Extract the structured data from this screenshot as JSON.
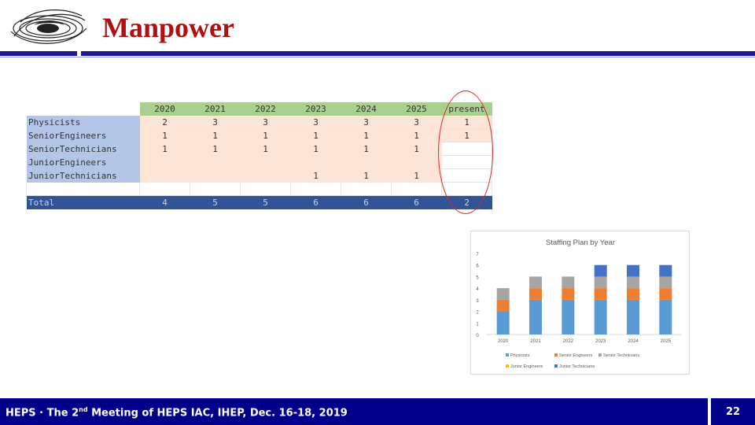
{
  "slide": {
    "title": "Manpower",
    "page_number": "22"
  },
  "footer": {
    "text_before": "HEPS · The 2",
    "text_sup": "nd",
    "text_after": " Meeting of HEPS IAC, IHEP, Dec. 16-18, 2019"
  },
  "table": {
    "header": [
      "2020",
      "2021",
      "2022",
      "2023",
      "2024",
      "2025",
      "present"
    ],
    "rows": [
      {
        "label": "Physicists",
        "values": [
          "2",
          "3",
          "3",
          "3",
          "3",
          "3",
          "1"
        ]
      },
      {
        "label": "SeniorEngineers",
        "values": [
          "1",
          "1",
          "1",
          "1",
          "1",
          "1",
          "1"
        ]
      },
      {
        "label": "SeniorTechnicians",
        "values": [
          "1",
          "1",
          "1",
          "1",
          "1",
          "1",
          ""
        ]
      },
      {
        "label": "JuniorEngineers",
        "values": [
          "",
          "",
          "",
          "",
          "",
          "",
          ""
        ]
      },
      {
        "label": "JuniorTechnicians",
        "values": [
          "",
          "",
          "",
          "1",
          "1",
          "1",
          ""
        ]
      }
    ],
    "total": {
      "label": "Total",
      "values": [
        "4",
        "5",
        "5",
        "6",
        "6",
        "6",
        "2"
      ]
    }
  },
  "chart_data": {
    "type": "bar",
    "stacked": true,
    "title": "Staffing Plan by Year",
    "categories": [
      "2020",
      "2021",
      "2022",
      "2023",
      "2024",
      "2025"
    ],
    "ylim": [
      0,
      7
    ],
    "yticks": [
      "0",
      "1",
      "2",
      "3",
      "4",
      "5",
      "6",
      "7"
    ],
    "series": [
      {
        "name": "Physicists",
        "values": [
          2,
          3,
          3,
          3,
          3,
          3
        ],
        "color": "#5b9bd5"
      },
      {
        "name": "Senior Engineers",
        "values": [
          1,
          1,
          1,
          1,
          1,
          1
        ],
        "color": "#ed7d31"
      },
      {
        "name": "Senior Technicians",
        "values": [
          1,
          1,
          1,
          1,
          1,
          1
        ],
        "color": "#a5a5a5"
      },
      {
        "name": "Junior Engineers",
        "values": [
          0,
          0,
          0,
          0,
          0,
          0
        ],
        "color": "#ffc000"
      },
      {
        "name": "Junior Technicians",
        "values": [
          0,
          0,
          0,
          1,
          1,
          1
        ],
        "color": "#4472c4"
      }
    ],
    "grid": false,
    "legend": "bottom"
  }
}
